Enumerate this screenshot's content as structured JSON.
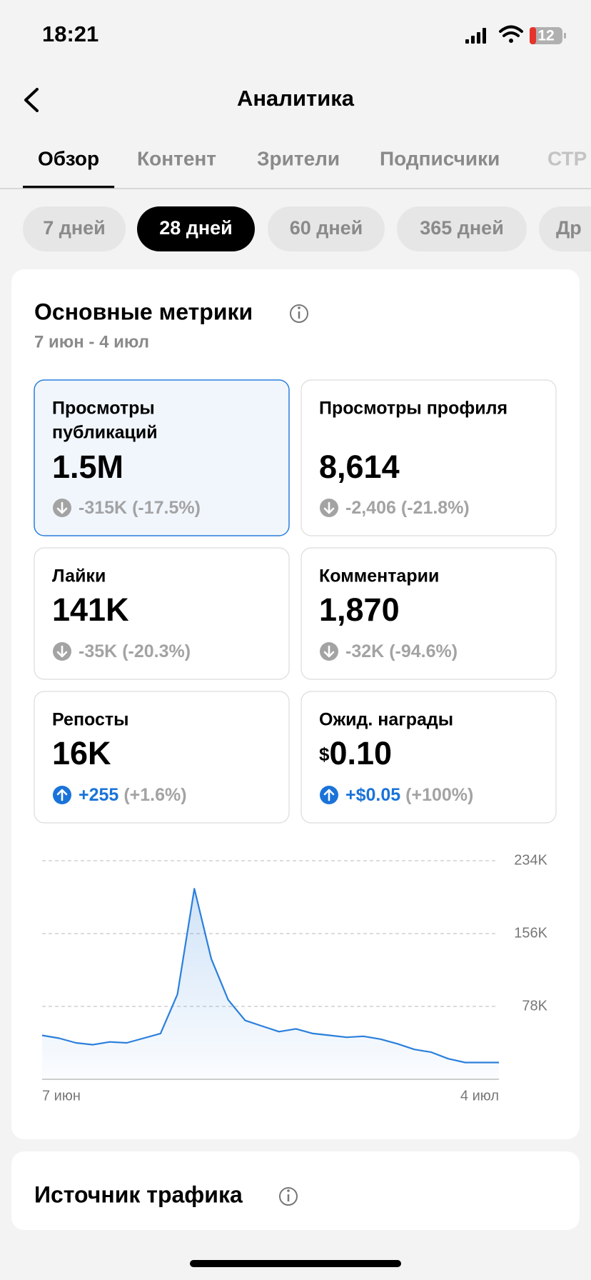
{
  "status": {
    "time": "18:21",
    "battery": "12"
  },
  "header": {
    "title": "Аналитика"
  },
  "tabs": [
    {
      "label": "Обзор",
      "active": true
    },
    {
      "label": "Контент",
      "active": false
    },
    {
      "label": "Зрители",
      "active": false
    },
    {
      "label": "Подписчики",
      "active": false
    },
    {
      "label": "СТР",
      "active": false
    }
  ],
  "periods": [
    {
      "label": "7 дней",
      "active": false
    },
    {
      "label": "28 дней",
      "active": true
    },
    {
      "label": "60 дней",
      "active": false
    },
    {
      "label": "365 дней",
      "active": false
    },
    {
      "label": "Др",
      "active": false
    }
  ],
  "metrics": {
    "title": "Основные метрики",
    "date": "7 июн - 4 июл",
    "cards": [
      {
        "label": [
          "Просмотры",
          "публикаций"
        ],
        "value": "1.5M",
        "change": "-315K",
        "pct": "(-17.5%)",
        "trend": "down",
        "selected": true
      },
      {
        "label": [
          "Просмотры профиля"
        ],
        "value": "8,614",
        "change": "-2,406",
        "pct": "(-21.8%)",
        "trend": "down",
        "selected": false
      },
      {
        "label": [
          "Лайки"
        ],
        "value": "141K",
        "change": "-35K",
        "pct": "(-20.3%)",
        "trend": "down",
        "selected": false
      },
      {
        "label": [
          "Комментарии"
        ],
        "value": "1,870",
        "change": "-32K",
        "pct": "(-94.6%)",
        "trend": "down",
        "selected": false
      },
      {
        "label": [
          "Репосты"
        ],
        "value": "16K",
        "change": "+255",
        "pct": "(+1.6%)",
        "trend": "up",
        "selected": false
      },
      {
        "label": [
          "Ожид. награды"
        ],
        "prefix": "$",
        "value": "0.10",
        "change": "+$0.05",
        "pct": "(+100%)",
        "trend": "up",
        "selected": false
      }
    ]
  },
  "chart_data": {
    "type": "line",
    "categories": [
      "7 июн",
      null,
      null,
      null,
      null,
      null,
      null,
      null,
      null,
      null,
      null,
      null,
      null,
      null,
      null,
      null,
      null,
      null,
      null,
      null,
      null,
      null,
      null,
      null,
      null,
      null,
      null,
      "4 июл"
    ],
    "series": [
      {
        "color": "#2a7fdc",
        "values": [
          47000,
          44000,
          39000,
          37000,
          40000,
          39000,
          44000,
          49000,
          91000,
          204000,
          129000,
          85000,
          63000,
          57000,
          51000,
          54000,
          49000,
          47000,
          45000,
          46000,
          43000,
          38000,
          32000,
          29000,
          22000,
          18000,
          18000,
          18000
        ]
      }
    ],
    "ylim": [
      0,
      234000
    ],
    "yticks": [
      {
        "value": 78000,
        "label": "78K"
      },
      {
        "value": 156000,
        "label": "156K"
      },
      {
        "value": 234000,
        "label": "234K"
      }
    ],
    "grid": true
  },
  "traffic": {
    "title": "Источник трафика"
  }
}
